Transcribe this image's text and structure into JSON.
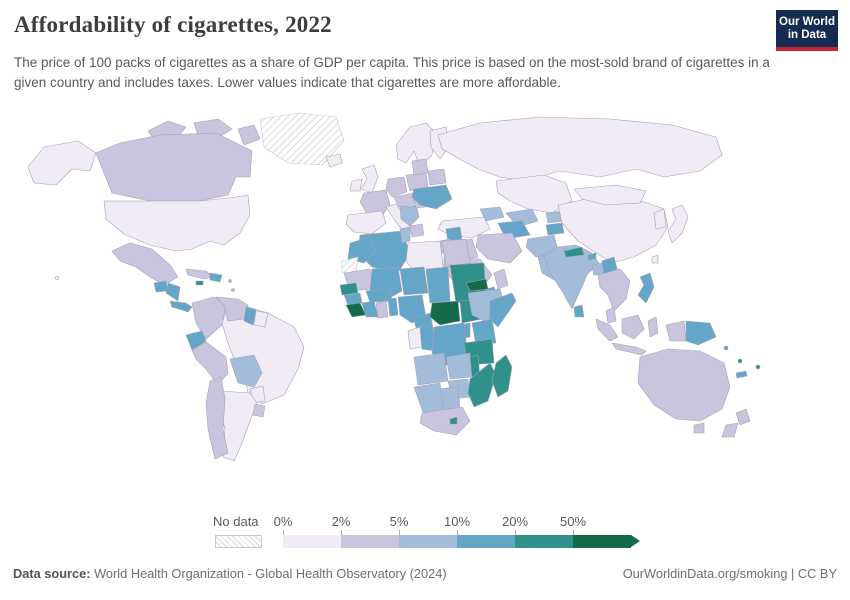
{
  "header": {
    "title": "Affordability of cigarettes, 2022",
    "subtitle": "The price of 100 packs of cigarettes as a share of GDP per capita. This price is based on the most-sold brand of cigarettes in a given country and includes taxes. Lower values indicate that cigarettes are more affordable."
  },
  "logo": {
    "line1": "Our World",
    "line2": "in Data"
  },
  "legend": {
    "no_data_label": "No data",
    "tick_labels": [
      "0%",
      "2%",
      "5%",
      "10%",
      "20%",
      "50%"
    ]
  },
  "footer": {
    "source_label": "Data source:",
    "source_text": " World Health Organization - Global Health Observatory (2024)",
    "link_text": "OurWorldinData.org/smoking | CC BY"
  },
  "colors": {
    "bins": [
      "#f0ebf4",
      "#c9c5df",
      "#a3bcda",
      "#63a6c8",
      "#2f908c",
      "#146b4a"
    ],
    "navy": "#132c50",
    "red": "#c5232f",
    "border": "#a6a1b5",
    "no_data_stroke": "#c6c6c6"
  },
  "chart_data": {
    "type": "choropleth-map",
    "title": "Affordability of cigarettes, 2022",
    "unit": "price of 100 cigarette packs as % of GDP per capita",
    "bin_edges": [
      "0%",
      "2%",
      "5%",
      "10%",
      "20%",
      "50%"
    ],
    "legend_note": "bins: 1 = 0-2%, 2 = 2-5%, 3 = 5-10%, 4 = 10-20%, 5 = 20-50%, 6 = 50%+, 0 = no data",
    "regions": {
      "alaska": 1,
      "hawaii": 1,
      "canada": 2,
      "canada_arctic1": 2,
      "canada_arctic2": 2,
      "canada_arctic3": 2,
      "greenland": 0,
      "iceland": 1,
      "usa": 1,
      "mexico": 2,
      "guatemala": 4,
      "honduras_nicaragua": 4,
      "costa_rica_panama": 4,
      "cuba": 2,
      "jamaica": 5,
      "hispaniola": 4,
      "antilles1": 3,
      "antilles2": 3,
      "colombia": 2,
      "venezuela": 2,
      "guyana": 4,
      "suriname": 1,
      "ecuador": 4,
      "peru": 2,
      "brazil": 1,
      "bolivia": 3,
      "paraguay": 1,
      "chile": 2,
      "argentina": 1,
      "uruguay": 2,
      "scandinavia": 1,
      "finland": 1,
      "uk": 1,
      "ireland": 1,
      "france": 2,
      "iberia": 1,
      "germany": 2,
      "poland": 2,
      "central_europe": 2,
      "italy": 1,
      "balkans": 3,
      "greece": 2,
      "romania": 2,
      "baltics": 2,
      "belarus": 2,
      "ukraine": 4,
      "turkey": 1,
      "caucasus": 3,
      "russia": 1,
      "kazakhstan": 1,
      "uzbekistan": 3,
      "turkmenistan": 4,
      "kyrgyzstan": 3,
      "tajikistan": 4,
      "afghanistan": 3,
      "pakistan": 3,
      "syria": 4,
      "israel_jordan": 2,
      "iraq": 2,
      "iran": 2,
      "saudi_arabia": 2,
      "yemen": 4,
      "oman": 2,
      "india": 3,
      "nepal": 5,
      "bhutan": 4,
      "bangladesh": 3,
      "myanmar": 4,
      "sri_lanka": 4,
      "china": 1,
      "mongolia": 1,
      "korea": 1,
      "japan": 1,
      "taiwan": 1,
      "indochina": 2,
      "malay_peninsula": 2,
      "philippines": 4,
      "sumatra": 2,
      "java": 2,
      "borneo": 2,
      "sulawesi": 2,
      "west_papua": 2,
      "papua_new_guinea": 4,
      "solomon_islands": 4,
      "vanuatu": 5,
      "fiji": 5,
      "new_caledonia": 4,
      "australia": 2,
      "tasmania": 2,
      "new_zealand_north": 2,
      "new_zealand_south": 2,
      "algeria": 4,
      "morocco": 4,
      "tunisia": 3,
      "libya": 1,
      "egypt": 2,
      "western_sahara": 0,
      "mauritania": 2,
      "mali": 4,
      "niger": 4,
      "chad": 4,
      "sudan": 5,
      "eritrea": 6,
      "senegal": 5,
      "guinea": 4,
      "sierra_leone_liberia": 6,
      "cote_divoire": 4,
      "ghana": 2,
      "togo_benin": 4,
      "burkina_faso": 4,
      "nigeria": 4,
      "cameroon": 4,
      "central_african_republic": 6,
      "south_sudan": 5,
      "ethiopia": 3,
      "somalia": 4,
      "uganda": 4,
      "kenya": 4,
      "gabon": 1,
      "congo": 4,
      "dr_congo": 4,
      "tanzania": 5,
      "angola": 3,
      "zambia": 3,
      "malawi": 5,
      "mozambique": 5,
      "zimbabwe": 3,
      "botswana": 3,
      "namibia": 3,
      "south_africa": 2,
      "lesotho": 5,
      "madagascar": 5
    }
  }
}
